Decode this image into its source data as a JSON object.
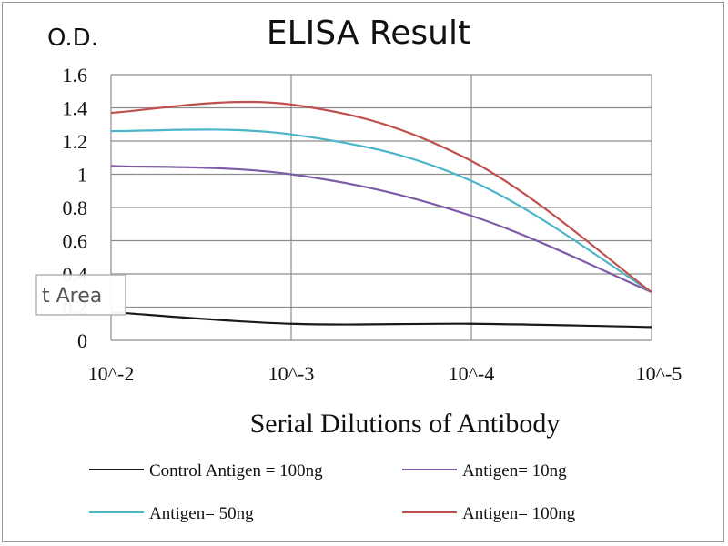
{
  "chart_data": {
    "type": "line",
    "title": "ELISA Result",
    "ylabel": "O.D.",
    "xlabel": "Serial Dilutions  of Antibody",
    "categories": [
      "10^-2",
      "10^-3",
      "10^-4",
      "10^-5"
    ],
    "ylim": [
      0,
      1.6
    ],
    "yticks": [
      0,
      0.2,
      0.4,
      0.6,
      0.8,
      1,
      1.2,
      1.4,
      1.6
    ],
    "ytick_labels": [
      "0",
      "0.2",
      "0.4",
      "0.6",
      "0.8",
      "1",
      "1.2",
      "1.4",
      "1.6"
    ],
    "grid": true,
    "legend_position": "bottom",
    "series": [
      {
        "name": "Control Antigen = 100ng",
        "values": [
          0.17,
          0.1,
          0.1,
          0.08
        ],
        "color": "#1a1a1a"
      },
      {
        "name": "Antigen= 10ng",
        "values": [
          1.05,
          1.0,
          0.75,
          0.29
        ],
        "color": "#7d5ba6"
      },
      {
        "name": "Antigen= 50ng",
        "values": [
          1.26,
          1.24,
          0.96,
          0.29
        ],
        "color": "#4bb6c9"
      },
      {
        "name": "Antigen= 100ng",
        "values": [
          1.37,
          1.42,
          1.08,
          0.29
        ],
        "color": "#c0504d"
      }
    ]
  },
  "overlay": {
    "partial_label": "t Area"
  }
}
